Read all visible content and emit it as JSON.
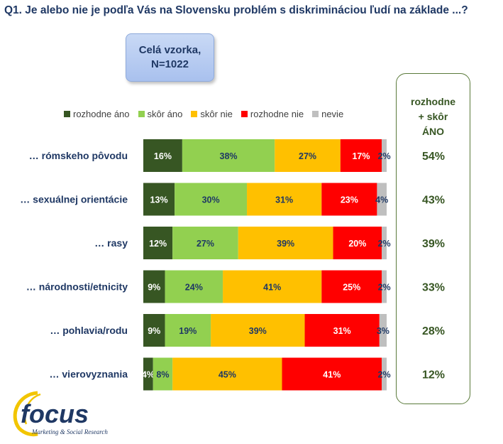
{
  "question_title": "Q1. Je alebo nie je podľa Vás na Slovensku problém s diskrimináciou ľudí na základe ...?",
  "sample_box": {
    "line1": "Celá vzorka,",
    "line2": "N=1022"
  },
  "summary_header": {
    "line1": "rozhodne",
    "line2": "+ skôr",
    "line3": "ÁNO"
  },
  "logo": {
    "brand": "focus",
    "tagline": "Marketing & Social Research"
  },
  "colors": {
    "rozhodne_ano": "#375623",
    "skor_ano": "#92d050",
    "skor_nie": "#ffc000",
    "rozhodne_nie": "#ff0000",
    "nevie": "#bfbfbf",
    "text_dark": "#1f3864",
    "summary_green": "#375623"
  },
  "chart_data": {
    "type": "bar",
    "orientation": "horizontal",
    "stacked": true,
    "categories": [
      "… rómskeho pôvodu",
      "… sexuálnej orientácie",
      "… rasy",
      "… národnosti/etnicity",
      "… pohlavia/rodu",
      "… vierovyznania"
    ],
    "series": [
      {
        "name": "rozhodne áno",
        "values": [
          16,
          13,
          12,
          9,
          9,
          4
        ]
      },
      {
        "name": "skôr áno",
        "values": [
          38,
          30,
          27,
          24,
          19,
          8
        ]
      },
      {
        "name": "skôr nie",
        "values": [
          27,
          31,
          39,
          41,
          39,
          45
        ]
      },
      {
        "name": "rozhodne nie",
        "values": [
          17,
          23,
          20,
          25,
          31,
          41
        ]
      },
      {
        "name": "nevie",
        "values": [
          2,
          4,
          2,
          2,
          3,
          2
        ]
      }
    ],
    "summary": [
      54,
      43,
      39,
      33,
      28,
      12
    ],
    "value_suffix": "%",
    "legend_position": "top",
    "grid": false
  }
}
